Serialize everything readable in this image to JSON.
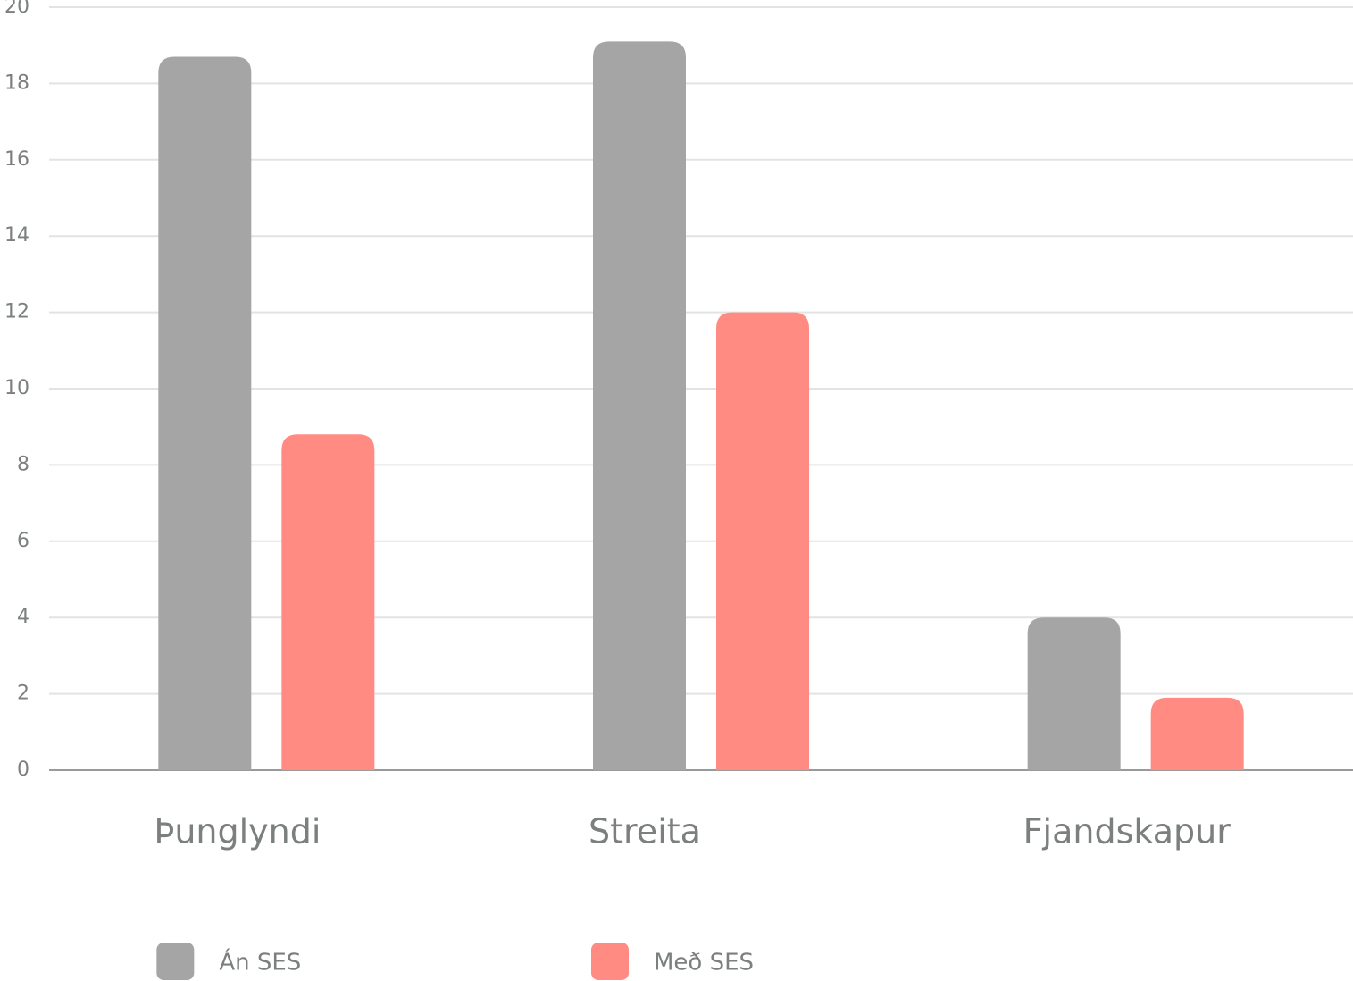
{
  "chart_data": {
    "type": "bar",
    "categories": [
      "Þunglyndi",
      "Streita",
      "Fjandskapur"
    ],
    "series": [
      {
        "name": "Án SES",
        "color": "#a5a5a5",
        "values": [
          18.7,
          19.1,
          4.0
        ]
      },
      {
        "name": "Með SES",
        "color": "#ff8b82",
        "values": [
          8.8,
          12.0,
          1.9
        ]
      }
    ],
    "ylim": [
      0,
      20
    ],
    "yticks": [
      0,
      2,
      4,
      6,
      8,
      10,
      12,
      14,
      16,
      18,
      20
    ],
    "grid": true,
    "legend": "bottom"
  }
}
